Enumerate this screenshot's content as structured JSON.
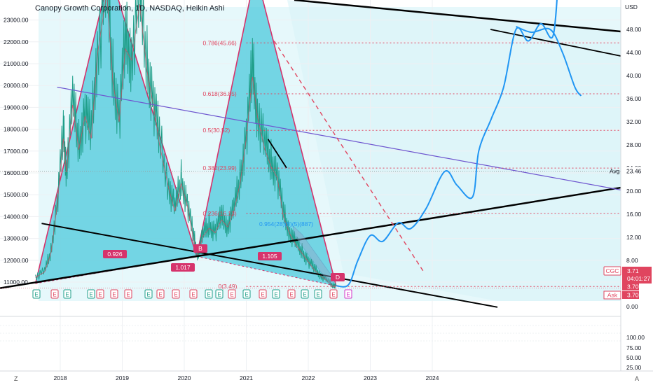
{
  "title": "Canopy Growth Corporation, 1D, NASDAQ, Heikin Ashi",
  "corner_left": "Z",
  "corner_right": "A",
  "chart_data": {
    "type": "line",
    "left_axis": {
      "ticks": [
        11000,
        12000,
        13000,
        14000,
        15000,
        16000,
        17000,
        18000,
        19000,
        20000,
        21000,
        22000,
        23000
      ],
      "labels": [
        "11000.00",
        "12000.00",
        "13000.00",
        "14000.00",
        "15000.00",
        "16000.00",
        "17000.00",
        "18000.00",
        "19000.00",
        "20000.00",
        "21000.00",
        "22000.00",
        "23000.00"
      ]
    },
    "right_axis": {
      "currency": "USD",
      "labels": [
        "48.00",
        "44.00",
        "40.00",
        "36.00",
        "32.00",
        "28.00",
        "24.00",
        "20.00",
        "16.00",
        "12.00",
        "8.00",
        "4.00",
        "0.00"
      ],
      "values": [
        48,
        44,
        40,
        36,
        32,
        28,
        24,
        20,
        16,
        12,
        8,
        4,
        0
      ]
    },
    "volume_axis": {
      "labels": [
        "100.00",
        "75.00",
        "50.00",
        "25.00",
        "0.00"
      ],
      "values": [
        100,
        75,
        50,
        25,
        0
      ]
    },
    "x_ticks": [
      "2018",
      "2019",
      "2020",
      "2021",
      "2022",
      "2023",
      "2024"
    ],
    "x_tick_values": [
      2018,
      2019,
      2020,
      2021,
      2022,
      2023,
      2024
    ],
    "price_scale": {
      "type": "log",
      "min_price": 3.0,
      "max_price": 60
    },
    "fib_levels": [
      {
        "label": "0.786(45.66)",
        "price": 45.66
      },
      {
        "label": "0.618(36.85)",
        "price": 36.85
      },
      {
        "label": "0.5(30.52)",
        "price": 30.52
      },
      {
        "label": "0.382(23.99)",
        "price": 23.99
      },
      {
        "label": "0.236(16.13)",
        "price": 16.13
      },
      {
        "label": "0(3.49)",
        "price": 3.49
      }
    ],
    "ratio_labels": [
      "0.926",
      "1.017",
      "1.105",
      "0.954(28)(8)(5)(887)"
    ],
    "pattern_point_labels": [
      "B",
      "D"
    ],
    "price_labels": {
      "avg": "Avg",
      "avg_value": "23.46",
      "symbol": "CGC",
      "last": "3.71",
      "countdown": "04:01:27",
      "bid": "3.70",
      "ask": "Ask",
      "ask_value": "3.70"
    },
    "price_points": [
      {
        "x": 2017.6,
        "y": 5.2
      },
      {
        "x": 2017.75,
        "y": 6.2
      },
      {
        "x": 2017.85,
        "y": 9.5
      },
      {
        "x": 2017.95,
        "y": 18
      },
      {
        "x": 2018.05,
        "y": 30
      },
      {
        "x": 2018.1,
        "y": 24
      },
      {
        "x": 2018.2,
        "y": 36
      },
      {
        "x": 2018.3,
        "y": 28
      },
      {
        "x": 2018.4,
        "y": 34
      },
      {
        "x": 2018.5,
        "y": 30
      },
      {
        "x": 2018.6,
        "y": 45
      },
      {
        "x": 2018.75,
        "y": 56
      },
      {
        "x": 2018.85,
        "y": 40
      },
      {
        "x": 2018.95,
        "y": 33
      },
      {
        "x": 2019.05,
        "y": 46
      },
      {
        "x": 2019.15,
        "y": 44
      },
      {
        "x": 2019.28,
        "y": 54
      },
      {
        "x": 2019.4,
        "y": 42
      },
      {
        "x": 2019.5,
        "y": 36
      },
      {
        "x": 2019.6,
        "y": 29
      },
      {
        "x": 2019.75,
        "y": 21
      },
      {
        "x": 2019.85,
        "y": 17
      },
      {
        "x": 2019.95,
        "y": 22
      },
      {
        "x": 2020.05,
        "y": 18
      },
      {
        "x": 2020.15,
        "y": 12
      },
      {
        "x": 2020.22,
        "y": 9.2
      },
      {
        "x": 2020.3,
        "y": 12.5
      },
      {
        "x": 2020.4,
        "y": 14
      },
      {
        "x": 2020.5,
        "y": 13.2
      },
      {
        "x": 2020.6,
        "y": 15.5
      },
      {
        "x": 2020.7,
        "y": 14.2
      },
      {
        "x": 2020.8,
        "y": 17
      },
      {
        "x": 2020.9,
        "y": 22
      },
      {
        "x": 2021.0,
        "y": 30
      },
      {
        "x": 2021.1,
        "y": 41
      },
      {
        "x": 2021.18,
        "y": 34
      },
      {
        "x": 2021.3,
        "y": 28
      },
      {
        "x": 2021.4,
        "y": 25
      },
      {
        "x": 2021.5,
        "y": 23
      },
      {
        "x": 2021.6,
        "y": 16
      },
      {
        "x": 2021.7,
        "y": 13
      },
      {
        "x": 2021.8,
        "y": 11
      },
      {
        "x": 2021.9,
        "y": 9.5
      },
      {
        "x": 2022.0,
        "y": 8
      },
      {
        "x": 2022.1,
        "y": 6.5
      },
      {
        "x": 2022.2,
        "y": 5.5
      },
      {
        "x": 2022.3,
        "y": 4.6
      },
      {
        "x": 2022.4,
        "y": 3.6
      },
      {
        "x": 2022.45,
        "y": 3.71
      }
    ],
    "projection_points": [
      {
        "x": 2022.45,
        "y": 3.6
      },
      {
        "x": 2022.65,
        "y": 3.8
      },
      {
        "x": 2022.8,
        "y": 8
      },
      {
        "x": 2023.0,
        "y": 12.3
      },
      {
        "x": 2023.2,
        "y": 11.3
      },
      {
        "x": 2023.45,
        "y": 14.5
      },
      {
        "x": 2023.65,
        "y": 13.5
      },
      {
        "x": 2023.9,
        "y": 17
      },
      {
        "x": 2024.2,
        "y": 23.4
      },
      {
        "x": 2024.4,
        "y": 21
      },
      {
        "x": 2024.65,
        "y": 19
      },
      {
        "x": 2024.75,
        "y": 27
      },
      {
        "x": 2024.95,
        "y": 32.5
      },
      {
        "x": 2025.15,
        "y": 38
      },
      {
        "x": 2025.35,
        "y": 48
      },
      {
        "x": 2025.55,
        "y": 46
      },
      {
        "x": 2025.75,
        "y": 49
      },
      {
        "x": 2025.95,
        "y": 47
      },
      {
        "x": 2026.05,
        "y": 60
      }
    ],
    "projection_points_2": [
      {
        "x": 2025.35,
        "y": 48.5
      },
      {
        "x": 2025.6,
        "y": 47.5
      },
      {
        "x": 2025.9,
        "y": 48
      },
      {
        "x": 2026.1,
        "y": 44
      },
      {
        "x": 2026.3,
        "y": 38
      },
      {
        "x": 2026.4,
        "y": 36.5
      }
    ],
    "harmonic_pattern": [
      {
        "x": 2017.6,
        "y": 4.0
      },
      {
        "x": 2018.8,
        "y": 58
      },
      {
        "x": 2020.2,
        "y": 8.7
      },
      {
        "x": 2021.15,
        "y": 58
      },
      {
        "x": 2022.45,
        "y": 3.55
      }
    ]
  }
}
